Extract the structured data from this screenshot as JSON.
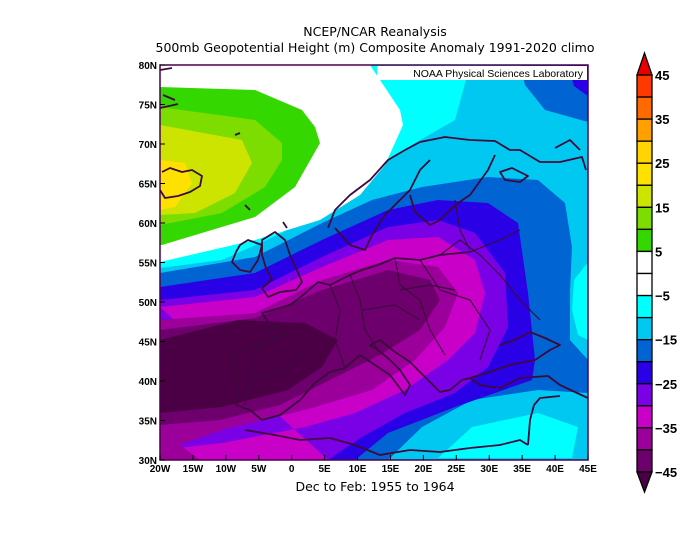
{
  "title": {
    "line1": "NCEP/NCAR Reanalysis",
    "line2": "500mb Geopotential Height (m) Composite Anomaly 1991-2020 climo"
  },
  "period_label": "Dec to Feb: 1955 to 1964",
  "watermark": "NOAA Physical Sciences Laboratory",
  "chart_data": {
    "type": "contour",
    "variable": "500mb Geopotential Height (m) Composite Anomaly",
    "xlim": [
      -20,
      45
    ],
    "ylim": [
      30,
      80
    ],
    "x_ticks": [
      "20W",
      "15W",
      "10W",
      "5W",
      "0",
      "5E",
      "10E",
      "15E",
      "20E",
      "25E",
      "30E",
      "35E",
      "40E",
      "45E"
    ],
    "y_ticks": [
      "30N",
      "35N",
      "40N",
      "45N",
      "50N",
      "55N",
      "60N",
      "65N",
      "70N",
      "75N",
      "80N"
    ],
    "colorbar": {
      "labels": [
        "45",
        "35",
        "25",
        "15",
        "5",
        "-5",
        "-15",
        "-25",
        "-35",
        "-45"
      ],
      "levels": [
        -45,
        -40,
        -35,
        -30,
        -25,
        -20,
        -15,
        -10,
        -5,
        0,
        5,
        10,
        15,
        20,
        25,
        30,
        35,
        40,
        45
      ],
      "colors_top_to_bottom": [
        "#e80000",
        "#ff3a00",
        "#ff6a00",
        "#ffa000",
        "#ffd400",
        "#ffe100",
        "#cce400",
        "#7ddc00",
        "#34d800",
        "#ffffff",
        "#ffffff",
        "#00ffff",
        "#00c8f0",
        "#0064d2",
        "#2a00e6",
        "#7a00e6",
        "#c800c8",
        "#9b009b",
        "#6e006e",
        "#4b0046"
      ]
    }
  }
}
